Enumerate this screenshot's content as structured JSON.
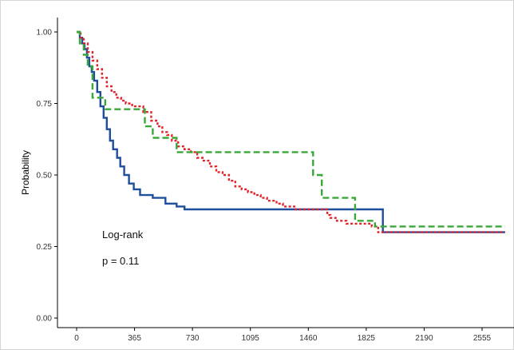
{
  "chart_data": {
    "type": "line",
    "step": true,
    "title": "",
    "xlabel": "",
    "ylabel": "Probability",
    "xlim": [
      0,
      2700
    ],
    "ylim": [
      0,
      1.03
    ],
    "x_ticks": [
      0,
      365,
      730,
      1095,
      1460,
      1825,
      2190,
      2555
    ],
    "x_tick_labels": [
      "0",
      "365",
      "730",
      "1095",
      "1460",
      "1825",
      "2190",
      "2555"
    ],
    "y_ticks": [
      0,
      0.25,
      0.5,
      0.75,
      1.0
    ],
    "y_tick_labels": [
      "0.00",
      "0.25",
      "0.50",
      "0.75",
      "1.00"
    ],
    "grid": false,
    "legend": "none",
    "annotations": [
      "Log-rank",
      "p = 0.11"
    ],
    "series": [
      {
        "color": "#1f4e9c",
        "line_style": "solid",
        "x": [
          0,
          20,
          35,
          50,
          65,
          80,
          95,
          110,
          130,
          150,
          170,
          190,
          210,
          230,
          255,
          275,
          300,
          330,
          360,
          400,
          480,
          560,
          630,
          680,
          1930,
          2700
        ],
        "y": [
          1.0,
          0.98,
          0.96,
          0.94,
          0.91,
          0.88,
          0.86,
          0.83,
          0.79,
          0.74,
          0.7,
          0.66,
          0.62,
          0.59,
          0.56,
          0.53,
          0.5,
          0.47,
          0.45,
          0.43,
          0.42,
          0.4,
          0.39,
          0.38,
          0.3,
          0.3
        ]
      },
      {
        "color": "#e0242b",
        "line_style": "dotted",
        "x": [
          0,
          25,
          45,
          70,
          100,
          130,
          160,
          190,
          220,
          250,
          280,
          310,
          350,
          420,
          470,
          510,
          540,
          570,
          600,
          640,
          680,
          720,
          760,
          800,
          840,
          880,
          920,
          960,
          1000,
          1040,
          1080,
          1120,
          1160,
          1200,
          1260,
          1300,
          1380,
          1450,
          1580,
          1600,
          1640,
          1700,
          1860,
          1900,
          2700
        ],
        "y": [
          1.0,
          0.98,
          0.96,
          0.93,
          0.9,
          0.87,
          0.84,
          0.81,
          0.79,
          0.77,
          0.76,
          0.75,
          0.74,
          0.72,
          0.69,
          0.67,
          0.65,
          0.64,
          0.62,
          0.6,
          0.59,
          0.58,
          0.56,
          0.55,
          0.53,
          0.51,
          0.5,
          0.48,
          0.46,
          0.45,
          0.44,
          0.43,
          0.42,
          0.41,
          0.4,
          0.39,
          0.38,
          0.38,
          0.36,
          0.35,
          0.34,
          0.33,
          0.32,
          0.3,
          0.3
        ]
      },
      {
        "color": "#3aa839",
        "line_style": "dashed",
        "x": [
          0,
          20,
          45,
          70,
          100,
          180,
          430,
          480,
          525,
          630,
          1490,
          1545,
          1755,
          1880,
          2700
        ],
        "y": [
          1.0,
          0.96,
          0.92,
          0.88,
          0.77,
          0.73,
          0.67,
          0.63,
          0.63,
          0.58,
          0.5,
          0.42,
          0.34,
          0.32,
          0.32
        ]
      }
    ]
  }
}
